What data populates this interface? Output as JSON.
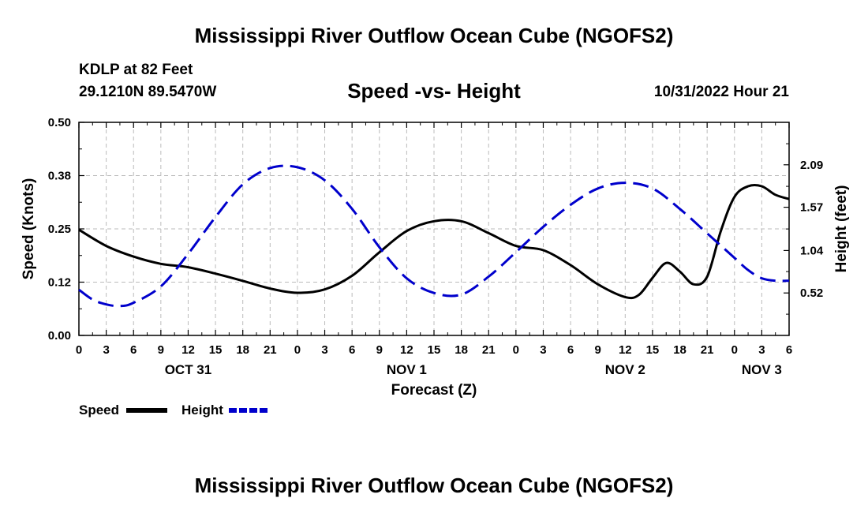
{
  "page": {
    "title": "Mississippi River Outflow Ocean Cube (NGOFS2)",
    "station": "KDLP at 82 Feet",
    "coords": "29.1210N  89.5470W",
    "subtitle": "Speed -vs- Height",
    "datetime": "10/31/2022 Hour 21",
    "bottom_title": "Mississippi River Outflow Ocean Cube (NGOFS2)"
  },
  "chart_data": {
    "type": "line",
    "xlabel": "Forecast (Z)",
    "ylabel_left": "Speed (Knots)",
    "ylabel_right": "Height (feet)",
    "x_range_hours": [
      0,
      78
    ],
    "x_ticks": [
      {
        "h": 0,
        "label": "0"
      },
      {
        "h": 3,
        "label": "3"
      },
      {
        "h": 6,
        "label": "6"
      },
      {
        "h": 9,
        "label": "9"
      },
      {
        "h": 12,
        "label": "12"
      },
      {
        "h": 15,
        "label": "15"
      },
      {
        "h": 18,
        "label": "18"
      },
      {
        "h": 21,
        "label": "21"
      },
      {
        "h": 24,
        "label": "0"
      },
      {
        "h": 27,
        "label": "3"
      },
      {
        "h": 30,
        "label": "6"
      },
      {
        "h": 33,
        "label": "9"
      },
      {
        "h": 36,
        "label": "12"
      },
      {
        "h": 39,
        "label": "15"
      },
      {
        "h": 42,
        "label": "18"
      },
      {
        "h": 45,
        "label": "21"
      },
      {
        "h": 48,
        "label": "0"
      },
      {
        "h": 51,
        "label": "3"
      },
      {
        "h": 54,
        "label": "6"
      },
      {
        "h": 57,
        "label": "9"
      },
      {
        "h": 60,
        "label": "12"
      },
      {
        "h": 63,
        "label": "15"
      },
      {
        "h": 66,
        "label": "18"
      },
      {
        "h": 69,
        "label": "21"
      },
      {
        "h": 72,
        "label": "0"
      },
      {
        "h": 75,
        "label": "3"
      },
      {
        "h": 78,
        "label": "6"
      }
    ],
    "date_labels": [
      {
        "h": 12,
        "label": "OCT 31"
      },
      {
        "h": 36,
        "label": "NOV 1"
      },
      {
        "h": 60,
        "label": "NOV 2"
      },
      {
        "h": 75,
        "label": "NOV 3"
      }
    ],
    "left_axis": {
      "range": [
        0,
        0.5
      ],
      "ticks": [
        {
          "v": 0,
          "label": "0.00"
        },
        {
          "v": 0.125,
          "label": "0.12"
        },
        {
          "v": 0.25,
          "label": "0.25"
        },
        {
          "v": 0.375,
          "label": "0.38"
        },
        {
          "v": 0.5,
          "label": "0.50"
        }
      ]
    },
    "right_axis": {
      "range": [
        0,
        2.61
      ],
      "ticks": [
        {
          "v": 0.52,
          "label": "0.52"
        },
        {
          "v": 1.04,
          "label": "1.04"
        },
        {
          "v": 1.57,
          "label": "1.57"
        },
        {
          "v": 2.09,
          "label": "2.09"
        }
      ]
    },
    "series": [
      {
        "name": "Speed",
        "axis": "left",
        "color": "#000000",
        "dashed": false,
        "x": [
          0,
          3,
          6,
          9,
          12,
          15,
          18,
          21,
          24,
          27,
          30,
          33,
          36,
          39,
          42,
          45,
          48,
          51,
          54,
          57,
          60,
          61.5,
          63,
          64.5,
          66,
          67.5,
          69,
          70.5,
          72,
          73.5,
          75,
          76.5,
          78
        ],
        "values": [
          0.248,
          0.21,
          0.185,
          0.168,
          0.16,
          0.145,
          0.128,
          0.11,
          0.1,
          0.108,
          0.14,
          0.195,
          0.245,
          0.268,
          0.268,
          0.24,
          0.21,
          0.2,
          0.165,
          0.12,
          0.09,
          0.095,
          0.135,
          0.17,
          0.15,
          0.12,
          0.138,
          0.245,
          0.325,
          0.35,
          0.35,
          0.33,
          0.32
        ]
      },
      {
        "name": "Height",
        "axis": "right",
        "color": "#0000cc",
        "dashed": true,
        "x": [
          0,
          1.5,
          3,
          4.5,
          6,
          9,
          12,
          15,
          18,
          21,
          24,
          27,
          30,
          33,
          36,
          39,
          42,
          45,
          48,
          51,
          54,
          57,
          60,
          63,
          66,
          69,
          72,
          73.5,
          75,
          76.5,
          78
        ],
        "values": [
          0.56,
          0.44,
          0.38,
          0.36,
          0.4,
          0.6,
          1.0,
          1.45,
          1.85,
          2.05,
          2.06,
          1.9,
          1.55,
          1.08,
          0.7,
          0.52,
          0.5,
          0.72,
          1.02,
          1.33,
          1.6,
          1.8,
          1.87,
          1.8,
          1.55,
          1.25,
          0.95,
          0.8,
          0.7,
          0.67,
          0.67
        ]
      }
    ],
    "legend": [
      {
        "name": "Speed",
        "color": "#000000",
        "dashed": false
      },
      {
        "name": "Height",
        "color": "#0000cc",
        "dashed": true
      }
    ],
    "grid": true,
    "legend_position": "bottom-left"
  }
}
